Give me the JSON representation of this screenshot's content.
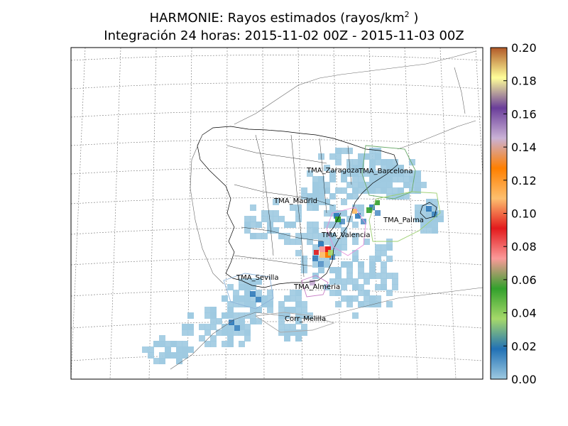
{
  "title": {
    "line1_text": "HARMONIE: Rayos estimados (rayos/km",
    "line1_sup": "2",
    "line1_end": " )",
    "line2": "Integración 24 horas: 2015-11-02 00Z - 2015-11-03 00Z"
  },
  "colorbar": {
    "min": 0.0,
    "max": 0.2,
    "ticks": [
      "0.00",
      "0.02",
      "0.04",
      "0.06",
      "0.08",
      "0.10",
      "0.12",
      "0.14",
      "0.16",
      "0.18",
      "0.20"
    ],
    "colors": [
      "#9ecae1",
      "#2171b5",
      "#a6d96a",
      "#33a02c",
      "#fb9a99",
      "#e31a1c",
      "#fdbf6f",
      "#ff7f00",
      "#cab2d6",
      "#6a3d9a",
      "#ffff99",
      "#b15928"
    ]
  },
  "regions": [
    {
      "name": "TMA_Zaragoza"
    },
    {
      "name": "TMA_Barcelona"
    },
    {
      "name": "TMA_Madrid"
    },
    {
      "name": "TMA_Palma"
    },
    {
      "name": "TMA_Valencia"
    },
    {
      "name": "TMA_Sevilla"
    },
    {
      "name": "TMA_Almeria"
    },
    {
      "name": "Corr_Melilla"
    }
  ]
}
